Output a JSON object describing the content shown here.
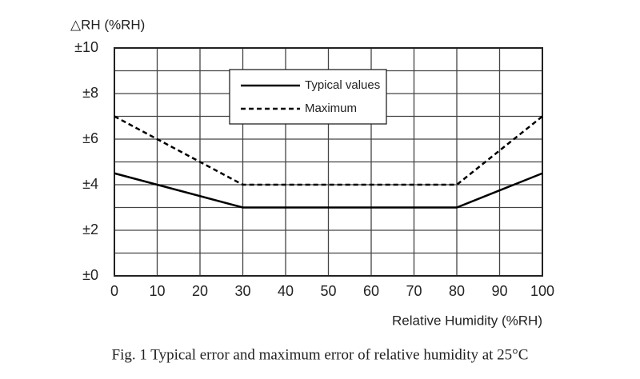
{
  "chart_data": {
    "type": "line",
    "y_axis_label": "△RH (%RH)",
    "x_axis_label": "Relative Humidity (%RH)",
    "caption": "Fig. 1 Typical error and maximum error of relative humidity at 25°C",
    "x": [
      0,
      30,
      80,
      100
    ],
    "series": [
      {
        "name": "Typical values",
        "color": "#000000",
        "line_style": "solid",
        "values": [
          4.5,
          3,
          3,
          4.5
        ]
      },
      {
        "name": "Maximum",
        "color": "#000000",
        "line_style": "dashed",
        "values": [
          7,
          4,
          4,
          7
        ]
      }
    ],
    "xlim": [
      0,
      100
    ],
    "xticks": [
      0,
      10,
      20,
      30,
      40,
      50,
      60,
      70,
      80,
      90,
      100
    ],
    "ylim": [
      0,
      10
    ],
    "yticks": [
      {
        "value": 0,
        "label": "±0"
      },
      {
        "value": 2,
        "label": "±2"
      },
      {
        "value": 4,
        "label": "±4"
      },
      {
        "value": 6,
        "label": "±6"
      },
      {
        "value": 8,
        "label": "±8"
      },
      {
        "value": 10,
        "label": "±10"
      }
    ],
    "y_minor_grid": [
      1,
      3,
      5,
      7,
      9
    ],
    "grid": true,
    "legend": "upper-left"
  }
}
